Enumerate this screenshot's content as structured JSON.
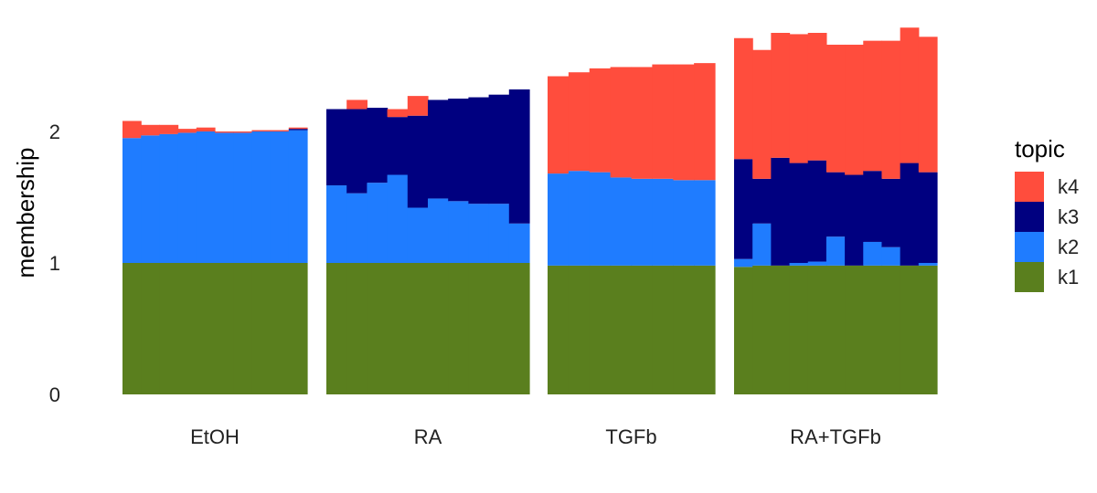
{
  "chart_data": {
    "type": "bar",
    "stacked": true,
    "ylabel": "membership",
    "xlabel": "",
    "ylim": [
      0,
      2.75
    ],
    "yticks": [
      0,
      1,
      2
    ],
    "grid": false,
    "legend": {
      "title": "topic",
      "placement": "right",
      "entries": [
        "k4",
        "k3",
        "k2",
        "k1"
      ]
    },
    "colors": {
      "k1": "#5a7f1e",
      "k2": "#1f7cff",
      "k3": "#000080",
      "k4": "#ff4d3d"
    },
    "series_order": [
      "k1",
      "k2",
      "k3",
      "k4"
    ],
    "groups": [
      {
        "label": "EtOH",
        "bars": [
          {
            "k1": 1.0,
            "k2": 0.95,
            "k3": 0.0,
            "k4": 0.13
          },
          {
            "k1": 1.0,
            "k2": 0.97,
            "k3": 0.0,
            "k4": 0.08
          },
          {
            "k1": 1.0,
            "k2": 0.98,
            "k3": 0.0,
            "k4": 0.07
          },
          {
            "k1": 1.0,
            "k2": 0.99,
            "k3": 0.0,
            "k4": 0.03
          },
          {
            "k1": 1.0,
            "k2": 1.0,
            "k3": 0.0,
            "k4": 0.03
          },
          {
            "k1": 1.0,
            "k2": 0.99,
            "k3": 0.0,
            "k4": 0.01
          },
          {
            "k1": 1.0,
            "k2": 0.99,
            "k3": 0.0,
            "k4": 0.01
          },
          {
            "k1": 1.0,
            "k2": 1.0,
            "k3": 0.0,
            "k4": 0.01
          },
          {
            "k1": 1.0,
            "k2": 1.0,
            "k3": 0.0,
            "k4": 0.01
          },
          {
            "k1": 1.0,
            "k2": 1.01,
            "k3": 0.01,
            "k4": 0.01
          }
        ]
      },
      {
        "label": "RA",
        "bars": [
          {
            "k1": 1.0,
            "k2": 0.59,
            "k3": 0.58,
            "k4": 0.0
          },
          {
            "k1": 1.0,
            "k2": 0.53,
            "k3": 0.64,
            "k4": 0.07
          },
          {
            "k1": 1.0,
            "k2": 0.61,
            "k3": 0.57,
            "k4": 0.0
          },
          {
            "k1": 1.0,
            "k2": 0.67,
            "k3": 0.44,
            "k4": 0.06
          },
          {
            "k1": 1.0,
            "k2": 0.42,
            "k3": 0.7,
            "k4": 0.15
          },
          {
            "k1": 1.0,
            "k2": 0.49,
            "k3": 0.75,
            "k4": 0.0
          },
          {
            "k1": 1.0,
            "k2": 0.47,
            "k3": 0.78,
            "k4": 0.0
          },
          {
            "k1": 1.0,
            "k2": 0.45,
            "k3": 0.81,
            "k4": 0.0
          },
          {
            "k1": 1.0,
            "k2": 0.45,
            "k3": 0.83,
            "k4": 0.0
          },
          {
            "k1": 1.0,
            "k2": 0.3,
            "k3": 1.02,
            "k4": 0.0
          }
        ]
      },
      {
        "label": "TGFb",
        "bars": [
          {
            "k1": 0.98,
            "k2": 0.7,
            "k3": 0.0,
            "k4": 0.74
          },
          {
            "k1": 0.98,
            "k2": 0.72,
            "k3": 0.0,
            "k4": 0.75
          },
          {
            "k1": 0.98,
            "k2": 0.71,
            "k3": 0.0,
            "k4": 0.79
          },
          {
            "k1": 0.98,
            "k2": 0.67,
            "k3": 0.0,
            "k4": 0.84
          },
          {
            "k1": 0.98,
            "k2": 0.66,
            "k3": 0.0,
            "k4": 0.85
          },
          {
            "k1": 0.98,
            "k2": 0.66,
            "k3": 0.0,
            "k4": 0.87
          },
          {
            "k1": 0.98,
            "k2": 0.65,
            "k3": 0.0,
            "k4": 0.88
          },
          {
            "k1": 0.98,
            "k2": 0.65,
            "k3": 0.0,
            "k4": 0.89
          }
        ]
      },
      {
        "label": "RA+TGFb",
        "bars": [
          {
            "k1": 0.97,
            "k2": 0.06,
            "k3": 0.76,
            "k4": 0.92
          },
          {
            "k1": 0.98,
            "k2": 0.32,
            "k3": 0.34,
            "k4": 0.98
          },
          {
            "k1": 0.98,
            "k2": 0.0,
            "k3": 0.82,
            "k4": 0.95
          },
          {
            "k1": 0.98,
            "k2": 0.02,
            "k3": 0.76,
            "k4": 0.98
          },
          {
            "k1": 0.98,
            "k2": 0.03,
            "k3": 0.77,
            "k4": 0.97
          },
          {
            "k1": 0.98,
            "k2": 0.22,
            "k3": 0.49,
            "k4": 0.97
          },
          {
            "k1": 0.98,
            "k2": 0.0,
            "k3": 0.69,
            "k4": 0.99
          },
          {
            "k1": 0.98,
            "k2": 0.18,
            "k3": 0.54,
            "k4": 0.99
          },
          {
            "k1": 0.98,
            "k2": 0.14,
            "k3": 0.52,
            "k4": 1.05
          },
          {
            "k1": 0.98,
            "k2": 0.0,
            "k3": 0.78,
            "k4": 1.03
          },
          {
            "k1": 0.98,
            "k2": 0.02,
            "k3": 0.69,
            "k4": 1.03
          }
        ]
      }
    ]
  }
}
